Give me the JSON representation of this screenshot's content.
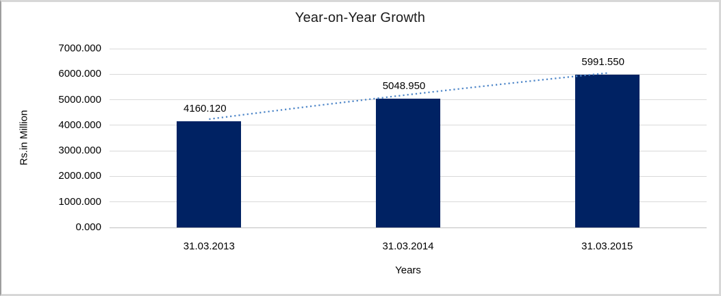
{
  "chart_data": {
    "type": "bar",
    "title": "Year-on-Year Growth",
    "xlabel": "Years",
    "ylabel": "Rs.in Million",
    "categories": [
      "31.03.2013",
      "31.03.2014",
      "31.03.2015"
    ],
    "values": [
      4160.12,
      5048.95,
      5991.55
    ],
    "data_labels": [
      "4160.120",
      "5048.950",
      "5991.550"
    ],
    "yticks": [
      "7000.000",
      "6000.000",
      "5000.000",
      "4000.000",
      "3000.000",
      "2000.000",
      "1000.000",
      "0.000"
    ],
    "ylim": [
      0,
      7000
    ],
    "ytick_step": 1000,
    "grid": true,
    "legend": "none",
    "trendline": "dotted linear trendline across bar tops",
    "colors": {
      "bar": "#002263",
      "trendline": "#4e86c8",
      "gridline": "#d9d9d9",
      "axis_line": "#bfbfbf",
      "text": "#000000",
      "title_text": "#1a1a1a"
    }
  }
}
